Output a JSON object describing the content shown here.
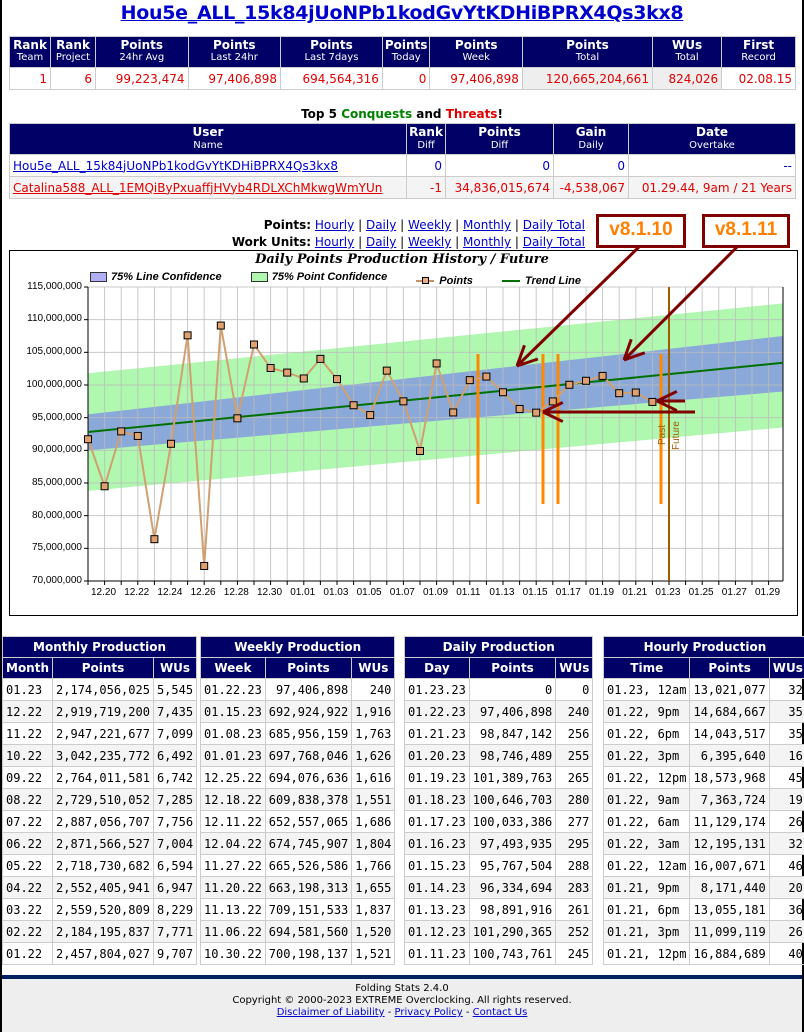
{
  "page_title": "Hou5e_ALL_15k84jUoNPb1kodGvYtKDHiBPRX4Qs3kx8",
  "stats": {
    "headers": [
      {
        "main": "Rank",
        "sub": "Team"
      },
      {
        "main": "Rank",
        "sub": "Project"
      },
      {
        "main": "Points",
        "sub": "24hr Avg"
      },
      {
        "main": "Points",
        "sub": "Last 24hr"
      },
      {
        "main": "Points",
        "sub": "Last 7days"
      },
      {
        "main": "Points",
        "sub": "Today"
      },
      {
        "main": "Points",
        "sub": "Week"
      },
      {
        "main": "Points",
        "sub": "Total"
      },
      {
        "main": "WUs",
        "sub": "Total"
      },
      {
        "main": "First",
        "sub": "Record"
      }
    ],
    "values": [
      "1",
      "6",
      "99,223,474",
      "97,406,898",
      "694,564,316",
      "0",
      "97,406,898",
      "120,665,204,661",
      "824,026",
      "02.08.15"
    ]
  },
  "top5": {
    "title_prefix": "Top 5 ",
    "title_conquests": "Conquests",
    "title_and": " and ",
    "title_threats": "Threats",
    "title_suffix": "!",
    "conquests_color": "#008000",
    "threats_color": "#e00000",
    "headers": [
      {
        "main": "User",
        "sub": "Name"
      },
      {
        "main": "Rank",
        "sub": "Diff"
      },
      {
        "main": "Points",
        "sub": "Diff"
      },
      {
        "main": "Gain",
        "sub": "Daily"
      },
      {
        "main": "Date",
        "sub": "Overtake"
      }
    ],
    "rows": [
      {
        "name": "Hou5e_ALL_15k84jUoNPb1kodGvYtKDHiBPRX4Qs3kx8",
        "rank_diff": "0",
        "points_diff": "0",
        "gain_daily": "0",
        "overtake": "--"
      },
      {
        "name": "Catalina588_ALL_1EMQiByPxuaffjHVyb4RDLXChMkwgWmYUn",
        "rank_diff": "-1",
        "points_diff": "34,836,015,674",
        "gain_daily": "-4,538,067",
        "overtake": "01.29.44, 9am / 21 Years"
      }
    ]
  },
  "graph_links": {
    "points_label": "Points:",
    "work_units_label": "Work Units:",
    "options": [
      "Hourly",
      "Daily",
      "Weekly",
      "Monthly",
      "Daily Total"
    ]
  },
  "annotations": {
    "version_a": "v8.1.10",
    "version_b": "v8.1.11",
    "past_label": "Past",
    "future_label": "Future"
  },
  "chart_data": {
    "type": "line",
    "title": "Daily Points Production History / Future",
    "xlabel": "",
    "ylabel": "",
    "ylim": [
      70000000,
      115000000
    ],
    "yticks": [
      "70,000,000",
      "75,000,000",
      "80,000,000",
      "85,000,000",
      "90,000,000",
      "95,000,000",
      "100,000,000",
      "105,000,000",
      "110,000,000",
      "115,000,000"
    ],
    "xticks": [
      "12.20",
      "12.22",
      "12.24",
      "12.26",
      "12.28",
      "12.30",
      "01.01",
      "01.03",
      "01.05",
      "01.07",
      "01.09",
      "01.11",
      "01.13",
      "01.15",
      "01.17",
      "01.19",
      "01.21",
      "01.23",
      "01.25",
      "01.27",
      "01.29"
    ],
    "grid": true,
    "legend": [
      "75% Line Confidence",
      "75% Point Confidence",
      "Points",
      "Trend Line"
    ],
    "legend_position": "top",
    "series": [
      {
        "name": "Points",
        "x": [
          "12.19",
          "12.20",
          "12.21",
          "12.22",
          "12.23",
          "12.24",
          "12.25",
          "12.26",
          "12.27",
          "12.28",
          "12.29",
          "12.30",
          "12.31",
          "01.01",
          "01.02",
          "01.03",
          "01.04",
          "01.05",
          "01.06",
          "01.07",
          "01.08",
          "01.09",
          "01.10",
          "01.11",
          "01.12",
          "01.13",
          "01.14",
          "01.15",
          "01.16",
          "01.17",
          "01.18",
          "01.19",
          "01.20",
          "01.21",
          "01.22"
        ],
        "values": [
          91700000,
          84500000,
          92900000,
          92200000,
          76400000,
          91000000,
          107600000,
          72300000,
          109100000,
          94900000,
          106200000,
          102600000,
          101900000,
          101000000,
          104000000,
          100900000,
          96900000,
          95400000,
          102200000,
          97500000,
          89900000,
          103300000,
          95800000,
          100743761,
          101290365,
          98891916,
          96334694,
          95767504,
          97493935,
          100033386,
          100646703,
          101389763,
          98746489,
          98847142,
          97406898
        ]
      },
      {
        "name": "Trend Line",
        "x": [
          "12.19",
          "01.30"
        ],
        "values": [
          92800000,
          103400000
        ]
      },
      {
        "name": "75% Line Confidence",
        "x": [
          "12.19",
          "01.30"
        ],
        "lower": [
          90000000,
          99000000
        ],
        "upper": [
          95500000,
          107500000
        ]
      },
      {
        "name": "75% Point Confidence",
        "x": [
          "12.19",
          "01.30"
        ],
        "lower": [
          83800000,
          93500000
        ],
        "upper": [
          101800000,
          112500000
        ]
      }
    ],
    "markers": {
      "past_future_divider": "01.23",
      "version_lines": [
        "01.12",
        "01.16",
        "01.17",
        "01.22"
      ]
    }
  },
  "monthly": {
    "title": "Monthly Production",
    "headers": [
      "Month",
      "Points",
      "WUs"
    ],
    "rows": [
      [
        "01.23",
        "2,174,056,025",
        "5,545"
      ],
      [
        "12.22",
        "2,919,719,200",
        "7,435"
      ],
      [
        "11.22",
        "2,947,221,677",
        "7,099"
      ],
      [
        "10.22",
        "3,042,235,772",
        "6,492"
      ],
      [
        "09.22",
        "2,764,011,581",
        "6,742"
      ],
      [
        "08.22",
        "2,729,510,052",
        "7,285"
      ],
      [
        "07.22",
        "2,887,056,707",
        "7,756"
      ],
      [
        "06.22",
        "2,871,566,527",
        "7,004"
      ],
      [
        "05.22",
        "2,718,730,682",
        "6,594"
      ],
      [
        "04.22",
        "2,552,405,941",
        "6,947"
      ],
      [
        "03.22",
        "2,559,520,809",
        "8,229"
      ],
      [
        "02.22",
        "2,184,195,837",
        "7,771"
      ],
      [
        "01.22",
        "2,457,804,027",
        "9,707"
      ]
    ]
  },
  "weekly": {
    "title": "Weekly Production",
    "headers": [
      "Week",
      "Points",
      "WUs"
    ],
    "rows": [
      [
        "01.22.23",
        "97,406,898",
        "240"
      ],
      [
        "01.15.23",
        "692,924,922",
        "1,916"
      ],
      [
        "01.08.23",
        "685,956,159",
        "1,763"
      ],
      [
        "01.01.23",
        "697,768,046",
        "1,626"
      ],
      [
        "12.25.22",
        "694,076,636",
        "1,616"
      ],
      [
        "12.18.22",
        "609,838,378",
        "1,551"
      ],
      [
        "12.11.22",
        "652,557,065",
        "1,686"
      ],
      [
        "12.04.22",
        "674,745,907",
        "1,804"
      ],
      [
        "11.27.22",
        "665,526,586",
        "1,766"
      ],
      [
        "11.20.22",
        "663,198,313",
        "1,655"
      ],
      [
        "11.13.22",
        "709,151,533",
        "1,837"
      ],
      [
        "11.06.22",
        "694,581,560",
        "1,520"
      ],
      [
        "10.30.22",
        "700,198,137",
        "1,521"
      ]
    ]
  },
  "daily": {
    "title": "Daily Production",
    "headers": [
      "Day",
      "Points",
      "WUs"
    ],
    "rows": [
      [
        "01.23.23",
        "0",
        "0"
      ],
      [
        "01.22.23",
        "97,406,898",
        "240"
      ],
      [
        "01.21.23",
        "98,847,142",
        "256"
      ],
      [
        "01.20.23",
        "98,746,489",
        "255"
      ],
      [
        "01.19.23",
        "101,389,763",
        "265"
      ],
      [
        "01.18.23",
        "100,646,703",
        "280"
      ],
      [
        "01.17.23",
        "100,033,386",
        "277"
      ],
      [
        "01.16.23",
        "97,493,935",
        "295"
      ],
      [
        "01.15.23",
        "95,767,504",
        "288"
      ],
      [
        "01.14.23",
        "96,334,694",
        "283"
      ],
      [
        "01.13.23",
        "98,891,916",
        "261"
      ],
      [
        "01.12.23",
        "101,290,365",
        "252"
      ],
      [
        "01.11.23",
        "100,743,761",
        "245"
      ]
    ]
  },
  "hourly": {
    "title": "Hourly Production",
    "headers": [
      "Time",
      "Points",
      "WUs"
    ],
    "rows": [
      [
        "01.23, 12am",
        "13,021,077",
        "32"
      ],
      [
        "01.22, 9pm",
        "14,684,667",
        "35"
      ],
      [
        "01.22, 6pm",
        "14,043,517",
        "35"
      ],
      [
        "01.22, 3pm",
        "6,395,640",
        "16"
      ],
      [
        "01.22, 12pm",
        "18,573,968",
        "45"
      ],
      [
        "01.22, 9am",
        "7,363,724",
        "19"
      ],
      [
        "01.22, 6am",
        "11,129,174",
        "26"
      ],
      [
        "01.22, 3am",
        "12,195,131",
        "32"
      ],
      [
        "01.22, 12am",
        "16,007,671",
        "46"
      ],
      [
        "01.21, 9pm",
        "8,171,440",
        "20"
      ],
      [
        "01.21, 6pm",
        "13,055,181",
        "36"
      ],
      [
        "01.21, 3pm",
        "11,099,119",
        "26"
      ],
      [
        "01.21, 12pm",
        "16,884,689",
        "40"
      ]
    ]
  },
  "footer": {
    "version": "Folding Stats 2.4.0",
    "copyright": "Copyright © 2000-2023 EXTREME Overclocking. All rights reserved.",
    "links": [
      "Disclaimer of Liability",
      "Privacy Policy",
      "Contact Us"
    ],
    "sep": " - "
  },
  "colors": {
    "header_bg": "#000066",
    "value_red": "#e00000",
    "link_blue": "#0000cc",
    "line_conf": "#8aa8d8",
    "point_conf": "#b0f8b0",
    "points_line": "#d0a070",
    "trend": "#007000",
    "annotation": "#800000",
    "version_line": "#ff8800",
    "divider": "#a05a00"
  }
}
